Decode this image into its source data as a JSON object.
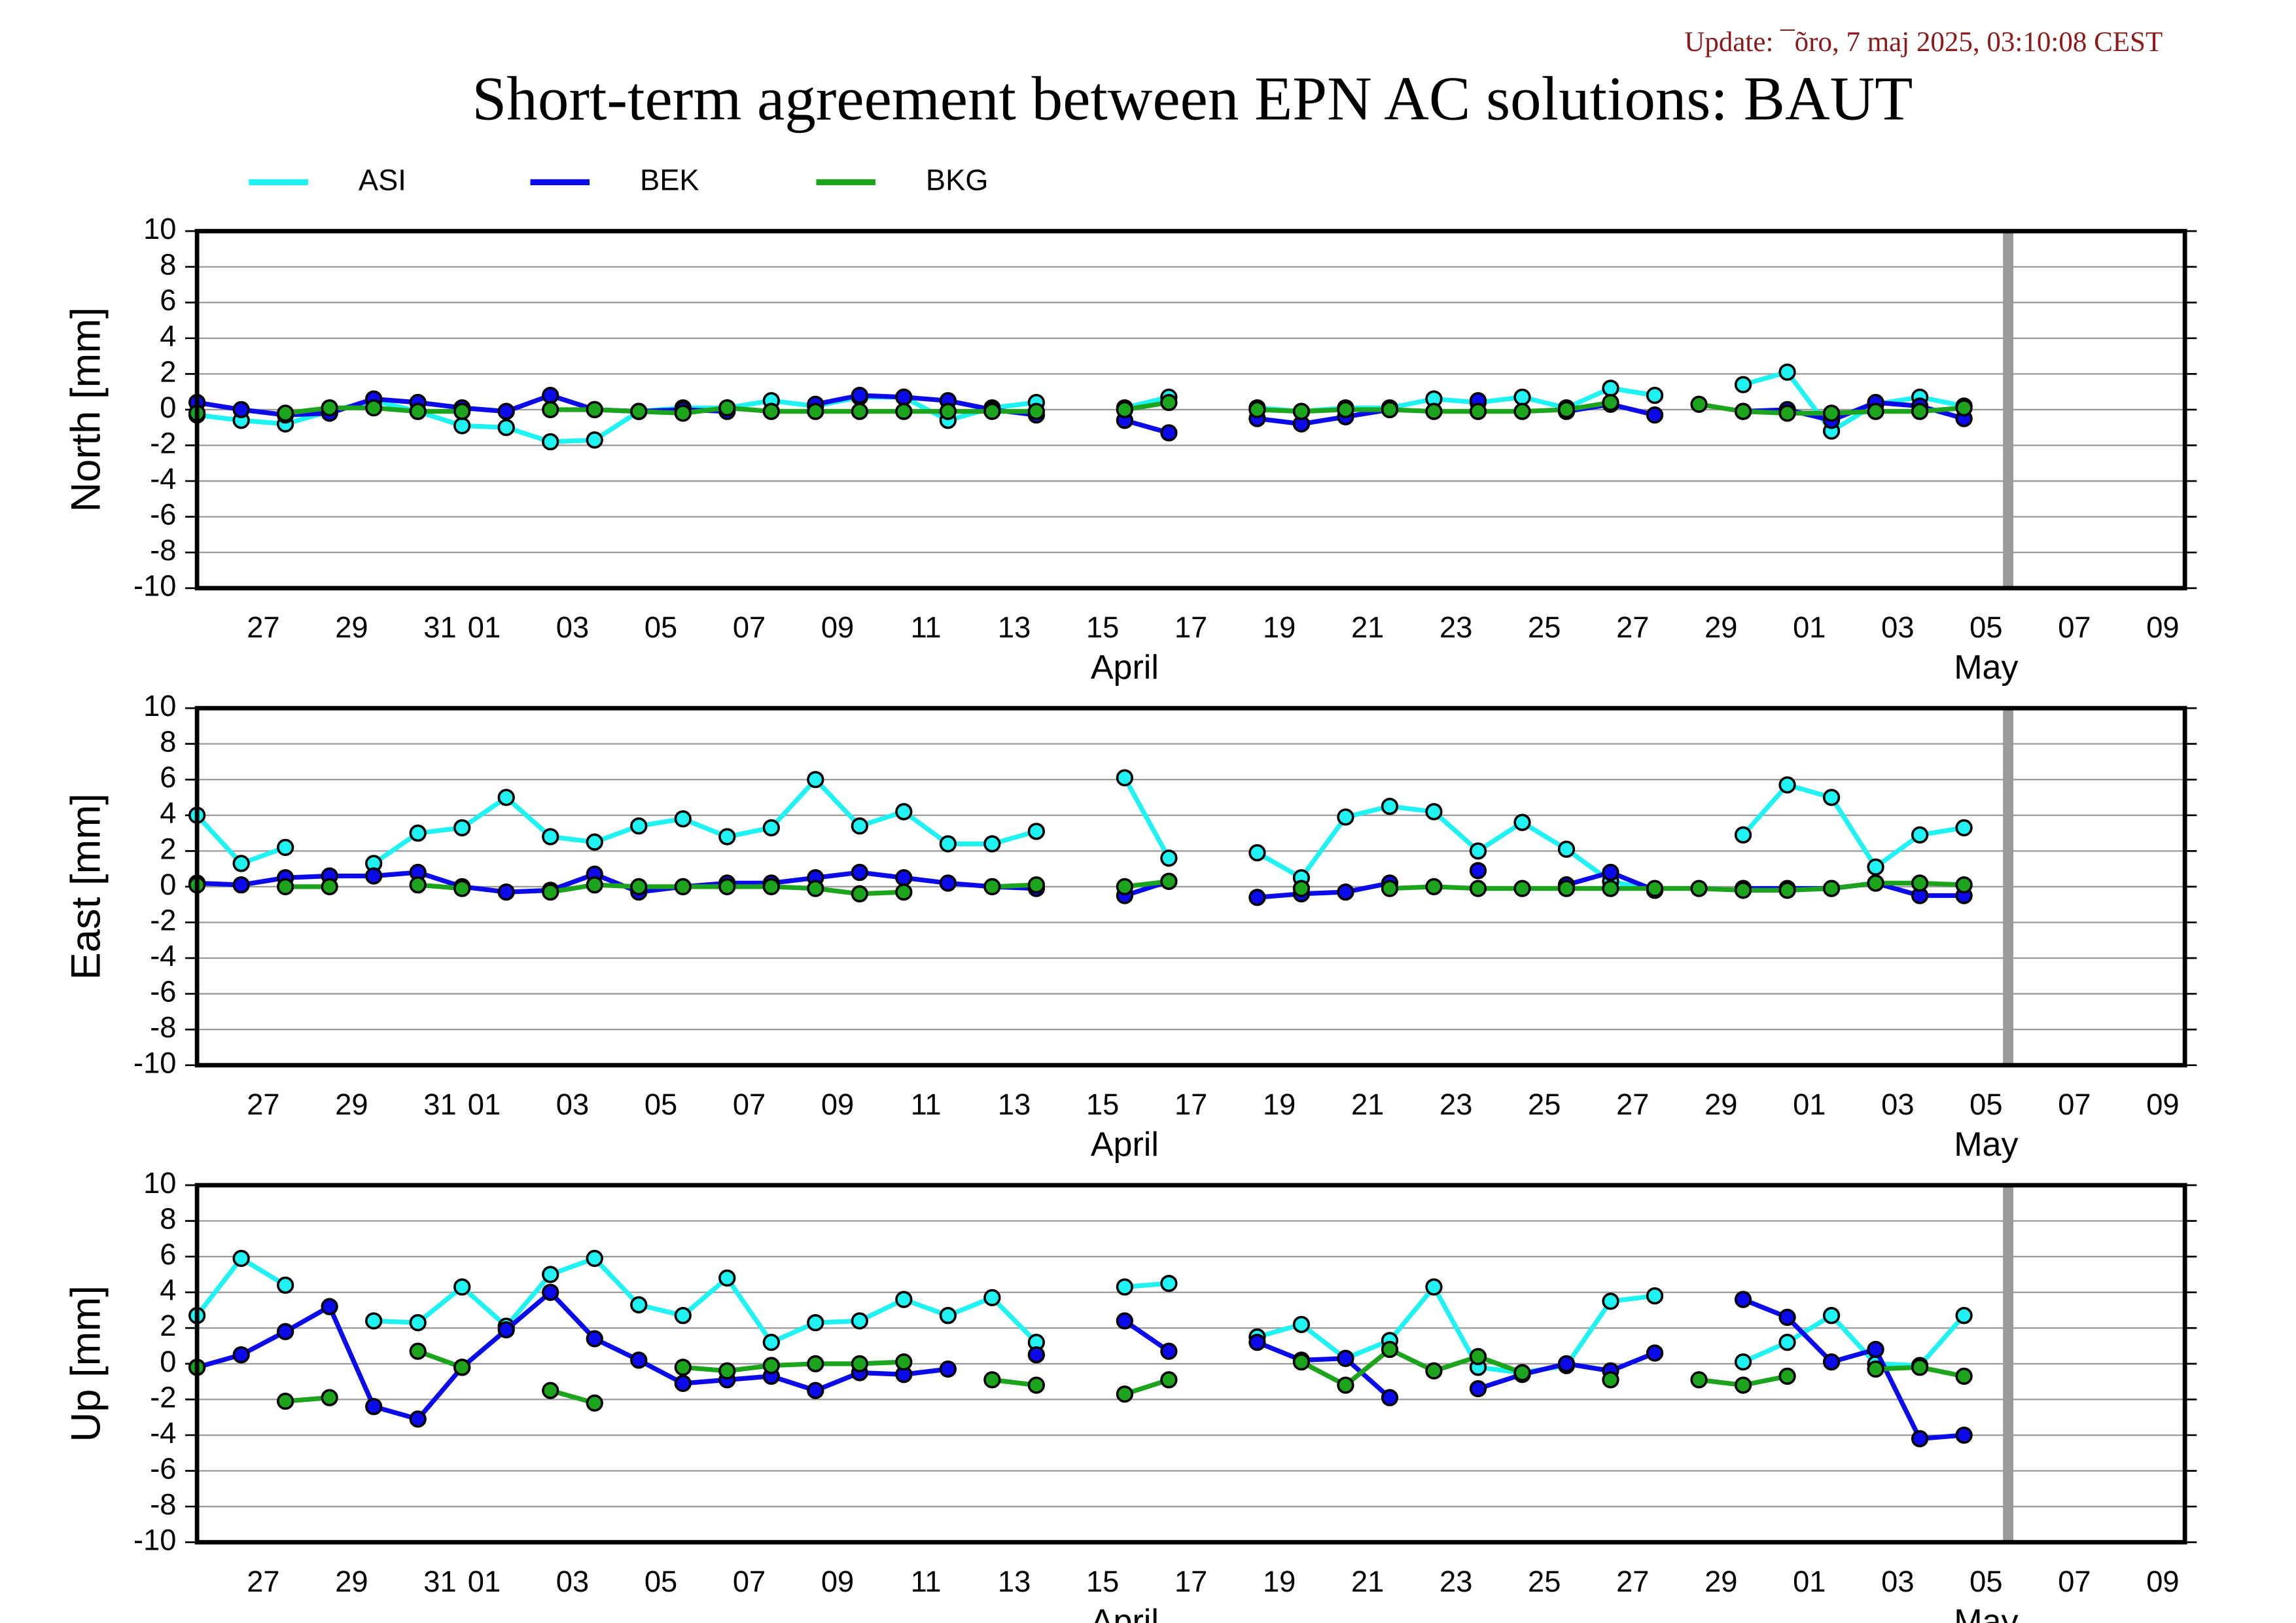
{
  "title": "Short-term agreement between EPN AC solutions: BAUT",
  "update": "Update: ¯õro, 7 maj 2025, 03:10:08 CEST",
  "chart_data": [
    {
      "type": "line",
      "y_label": "North [mm]",
      "x": [
        "03-26",
        "03-27",
        "03-28",
        "03-29",
        "03-30",
        "03-31",
        "04-01",
        "04-02",
        "04-03",
        "04-04",
        "04-05",
        "04-06",
        "04-07",
        "04-08",
        "04-09",
        "04-10",
        "04-11",
        "04-12",
        "04-13",
        "04-14",
        "04-15",
        "04-16",
        "04-17",
        "04-18",
        "04-19",
        "04-20",
        "04-21",
        "04-22",
        "04-23",
        "04-24",
        "04-25",
        "04-26",
        "04-27",
        "04-28",
        "04-29",
        "04-30",
        "05-01",
        "05-02",
        "05-03",
        "05-04",
        "05-05"
      ],
      "series": [
        {
          "name": "ASI",
          "color": "#1ff2f2",
          "values": [
            -0.3,
            -0.6,
            -0.8,
            -0.1,
            0.5,
            -0.1,
            -0.9,
            -1.0,
            -1.8,
            -1.7,
            -0.1,
            0.1,
            0.1,
            0.5,
            0.2,
            0.7,
            0.7,
            -0.6,
            0.1,
            0.4,
            null,
            0.1,
            0.7,
            null,
            0.1,
            -0.1,
            0.1,
            0.1,
            0.6,
            0.4,
            0.7,
            0.1,
            1.2,
            0.8,
            null,
            1.4,
            2.1,
            -1.2,
            0.3,
            0.7,
            0.2
          ]
        },
        {
          "name": "BEK",
          "color": "#0a0aeb",
          "values": [
            0.4,
            0.0,
            -0.3,
            -0.2,
            0.6,
            0.4,
            0.1,
            -0.1,
            0.8,
            0.0,
            -0.1,
            0.0,
            -0.1,
            null,
            0.3,
            0.8,
            0.7,
            0.5,
            0.0,
            -0.3,
            null,
            -0.6,
            -1.3,
            null,
            -0.5,
            -0.8,
            -0.4,
            0.0,
            null,
            0.5,
            null,
            -0.1,
            0.3,
            -0.3,
            null,
            -0.1,
            0.0,
            -0.6,
            0.4,
            0.2,
            -0.5
          ]
        },
        {
          "name": "BKG",
          "color": "#1ca51c",
          "values": [
            -0.2,
            null,
            -0.2,
            0.1,
            0.1,
            -0.1,
            -0.1,
            null,
            0.0,
            0.0,
            -0.1,
            -0.2,
            0.1,
            -0.1,
            -0.1,
            -0.1,
            -0.1,
            -0.1,
            -0.1,
            -0.1,
            null,
            0.0,
            0.4,
            null,
            0.0,
            -0.1,
            0.0,
            0.0,
            -0.1,
            -0.1,
            -0.1,
            0.0,
            0.4,
            null,
            0.3,
            -0.1,
            -0.2,
            -0.2,
            -0.1,
            -0.1,
            0.1
          ]
        }
      ],
      "xlim": [
        "03-26",
        "05-10"
      ],
      "xticks": [
        {
          "value": "03-27 12:00",
          "label": "27"
        },
        {
          "value": "03-29 12:00",
          "label": "29"
        },
        {
          "value": "03-31 12:00",
          "label": "31"
        },
        {
          "value": "04-01 12:00",
          "label": "01"
        },
        {
          "value": "04-03 12:00",
          "label": "03"
        },
        {
          "value": "04-05 12:00",
          "label": "05"
        },
        {
          "value": "04-07 12:00",
          "label": "07"
        },
        {
          "value": "04-09 12:00",
          "label": "09"
        },
        {
          "value": "04-11 12:00",
          "label": "11"
        },
        {
          "value": "04-13 12:00",
          "label": "13"
        },
        {
          "value": "04-15 12:00",
          "label": "15"
        },
        {
          "value": "04-17 12:00",
          "label": "17"
        },
        {
          "value": "04-19 12:00",
          "label": "19"
        },
        {
          "value": "04-21 12:00",
          "label": "21"
        },
        {
          "value": "04-23 12:00",
          "label": "23"
        },
        {
          "value": "04-25 12:00",
          "label": "25"
        },
        {
          "value": "04-27 12:00",
          "label": "27"
        },
        {
          "value": "04-29 12:00",
          "label": "29"
        },
        {
          "value": "05-01 12:00",
          "label": "01"
        },
        {
          "value": "05-03 12:00",
          "label": "03"
        },
        {
          "value": "05-05 12:00",
          "label": "05"
        },
        {
          "value": "05-07 12:00",
          "label": "07"
        },
        {
          "value": "05-09 12:00",
          "label": "09"
        }
      ],
      "month_labels": [
        {
          "value": "04-16",
          "label": "April"
        },
        {
          "value": "05-05 12:00",
          "label": "May"
        }
      ],
      "marker_x": "05-06",
      "ylim": [
        -10,
        10
      ],
      "yticks": [
        -10,
        -8,
        -6,
        -4,
        -2,
        0,
        2,
        4,
        6,
        8,
        10
      ],
      "grid": true
    },
    {
      "type": "line",
      "y_label": "East [mm]",
      "x": [
        "03-26",
        "03-27",
        "03-28",
        "03-29",
        "03-30",
        "03-31",
        "04-01",
        "04-02",
        "04-03",
        "04-04",
        "04-05",
        "04-06",
        "04-07",
        "04-08",
        "04-09",
        "04-10",
        "04-11",
        "04-12",
        "04-13",
        "04-14",
        "04-15",
        "04-16",
        "04-17",
        "04-18",
        "04-19",
        "04-20",
        "04-21",
        "04-22",
        "04-23",
        "04-24",
        "04-25",
        "04-26",
        "04-27",
        "04-28",
        "04-29",
        "04-30",
        "05-01",
        "05-02",
        "05-03",
        "05-04",
        "05-05"
      ],
      "series": [
        {
          "name": "ASI",
          "color": "#1ff2f2",
          "values": [
            4.0,
            1.3,
            2.2,
            null,
            1.3,
            3.0,
            3.3,
            5.0,
            2.8,
            2.5,
            3.4,
            3.8,
            2.8,
            3.3,
            6.0,
            3.4,
            4.2,
            2.4,
            2.4,
            3.1,
            null,
            6.1,
            1.6,
            null,
            1.9,
            0.5,
            3.9,
            4.5,
            4.2,
            2.0,
            3.6,
            2.1,
            0.3,
            -0.2,
            null,
            2.9,
            5.7,
            5.0,
            1.1,
            2.9,
            3.3
          ]
        },
        {
          "name": "BEK",
          "color": "#0a0aeb",
          "values": [
            0.2,
            0.1,
            0.5,
            0.6,
            0.6,
            0.8,
            0.0,
            -0.3,
            -0.2,
            0.7,
            -0.3,
            0.0,
            0.2,
            0.2,
            0.5,
            0.8,
            0.5,
            0.2,
            0.0,
            -0.1,
            null,
            -0.5,
            0.3,
            null,
            -0.6,
            -0.4,
            -0.3,
            0.2,
            null,
            0.9,
            null,
            0.1,
            0.8,
            -0.2,
            null,
            -0.1,
            -0.1,
            -0.1,
            0.2,
            -0.5,
            -0.5
          ]
        },
        {
          "name": "BKG",
          "color": "#1ca51c",
          "values": [
            0.1,
            null,
            0.0,
            0.0,
            null,
            0.1,
            -0.1,
            null,
            -0.3,
            0.1,
            0.0,
            0.0,
            0.0,
            0.0,
            -0.1,
            -0.4,
            -0.3,
            null,
            0.0,
            0.1,
            null,
            0.0,
            0.3,
            null,
            null,
            -0.1,
            null,
            -0.1,
            0.0,
            -0.1,
            -0.1,
            -0.1,
            -0.1,
            -0.1,
            -0.1,
            -0.2,
            -0.2,
            -0.1,
            0.2,
            0.2,
            0.1
          ]
        }
      ],
      "xlim": [
        "03-26",
        "05-10"
      ],
      "xticks": [
        {
          "value": "03-27 12:00",
          "label": "27"
        },
        {
          "value": "03-29 12:00",
          "label": "29"
        },
        {
          "value": "03-31 12:00",
          "label": "31"
        },
        {
          "value": "04-01 12:00",
          "label": "01"
        },
        {
          "value": "04-03 12:00",
          "label": "03"
        },
        {
          "value": "04-05 12:00",
          "label": "05"
        },
        {
          "value": "04-07 12:00",
          "label": "07"
        },
        {
          "value": "04-09 12:00",
          "label": "09"
        },
        {
          "value": "04-11 12:00",
          "label": "11"
        },
        {
          "value": "04-13 12:00",
          "label": "13"
        },
        {
          "value": "04-15 12:00",
          "label": "15"
        },
        {
          "value": "04-17 12:00",
          "label": "17"
        },
        {
          "value": "04-19 12:00",
          "label": "19"
        },
        {
          "value": "04-21 12:00",
          "label": "21"
        },
        {
          "value": "04-23 12:00",
          "label": "23"
        },
        {
          "value": "04-25 12:00",
          "label": "25"
        },
        {
          "value": "04-27 12:00",
          "label": "27"
        },
        {
          "value": "04-29 12:00",
          "label": "29"
        },
        {
          "value": "05-01 12:00",
          "label": "01"
        },
        {
          "value": "05-03 12:00",
          "label": "03"
        },
        {
          "value": "05-05 12:00",
          "label": "05"
        },
        {
          "value": "05-07 12:00",
          "label": "07"
        },
        {
          "value": "05-09 12:00",
          "label": "09"
        }
      ],
      "month_labels": [
        {
          "value": "04-16",
          "label": "April"
        },
        {
          "value": "05-05 12:00",
          "label": "May"
        }
      ],
      "marker_x": "05-06",
      "ylim": [
        -10,
        10
      ],
      "yticks": [
        -10,
        -8,
        -6,
        -4,
        -2,
        0,
        2,
        4,
        6,
        8,
        10
      ],
      "grid": true
    },
    {
      "type": "line",
      "y_label": "Up [mm]",
      "x": [
        "03-26",
        "03-27",
        "03-28",
        "03-29",
        "03-30",
        "03-31",
        "04-01",
        "04-02",
        "04-03",
        "04-04",
        "04-05",
        "04-06",
        "04-07",
        "04-08",
        "04-09",
        "04-10",
        "04-11",
        "04-12",
        "04-13",
        "04-14",
        "04-15",
        "04-16",
        "04-17",
        "04-18",
        "04-19",
        "04-20",
        "04-21",
        "04-22",
        "04-23",
        "04-24",
        "04-25",
        "04-26",
        "04-27",
        "04-28",
        "04-29",
        "04-30",
        "05-01",
        "05-02",
        "05-03",
        "05-04",
        "05-05"
      ],
      "series": [
        {
          "name": "ASI",
          "color": "#1ff2f2",
          "values": [
            2.7,
            5.9,
            4.4,
            null,
            2.4,
            2.3,
            4.3,
            2.1,
            5.0,
            5.9,
            3.3,
            2.7,
            4.8,
            1.2,
            2.3,
            2.4,
            3.6,
            2.7,
            3.7,
            1.2,
            null,
            4.3,
            4.5,
            null,
            1.5,
            2.2,
            0.3,
            1.3,
            4.3,
            -0.2,
            -0.5,
            -0.1,
            3.5,
            3.8,
            null,
            0.1,
            1.2,
            2.7,
            0.0,
            -0.1,
            2.7
          ]
        },
        {
          "name": "BEK",
          "color": "#0a0aeb",
          "values": [
            -0.2,
            0.5,
            1.8,
            3.2,
            -2.4,
            -3.1,
            -0.2,
            1.9,
            4.0,
            1.4,
            0.2,
            -1.1,
            -0.9,
            -0.7,
            -1.5,
            -0.5,
            -0.6,
            -0.3,
            null,
            0.5,
            null,
            2.4,
            0.7,
            null,
            1.2,
            0.2,
            0.3,
            -1.9,
            null,
            -1.4,
            -0.6,
            0.0,
            -0.4,
            0.6,
            null,
            3.6,
            2.6,
            0.1,
            0.8,
            -4.2,
            -4.0
          ]
        },
        {
          "name": "BKG",
          "color": "#1ca51c",
          "values": [
            -0.2,
            null,
            -2.1,
            -1.9,
            null,
            0.7,
            -0.2,
            null,
            -1.5,
            -2.2,
            null,
            -0.2,
            -0.4,
            -0.1,
            0.0,
            0.0,
            0.1,
            null,
            -0.9,
            -1.2,
            null,
            -1.7,
            -0.9,
            null,
            null,
            0.1,
            -1.2,
            0.8,
            -0.4,
            0.4,
            -0.5,
            null,
            -0.9,
            null,
            -0.9,
            -1.2,
            -0.7,
            null,
            -0.3,
            -0.2,
            -0.7
          ]
        }
      ],
      "xlim": [
        "03-26",
        "05-10"
      ],
      "xticks": [
        {
          "value": "03-27 12:00",
          "label": "27"
        },
        {
          "value": "03-29 12:00",
          "label": "29"
        },
        {
          "value": "03-31 12:00",
          "label": "31"
        },
        {
          "value": "04-01 12:00",
          "label": "01"
        },
        {
          "value": "04-03 12:00",
          "label": "03"
        },
        {
          "value": "04-05 12:00",
          "label": "05"
        },
        {
          "value": "04-07 12:00",
          "label": "07"
        },
        {
          "value": "04-09 12:00",
          "label": "09"
        },
        {
          "value": "04-11 12:00",
          "label": "11"
        },
        {
          "value": "04-13 12:00",
          "label": "13"
        },
        {
          "value": "04-15 12:00",
          "label": "15"
        },
        {
          "value": "04-17 12:00",
          "label": "17"
        },
        {
          "value": "04-19 12:00",
          "label": "19"
        },
        {
          "value": "04-21 12:00",
          "label": "21"
        },
        {
          "value": "04-23 12:00",
          "label": "23"
        },
        {
          "value": "04-25 12:00",
          "label": "25"
        },
        {
          "value": "04-27 12:00",
          "label": "27"
        },
        {
          "value": "04-29 12:00",
          "label": "29"
        },
        {
          "value": "05-01 12:00",
          "label": "01"
        },
        {
          "value": "05-03 12:00",
          "label": "03"
        },
        {
          "value": "05-05 12:00",
          "label": "05"
        },
        {
          "value": "05-07 12:00",
          "label": "07"
        },
        {
          "value": "05-09 12:00",
          "label": "09"
        }
      ],
      "month_labels": [
        {
          "value": "04-16",
          "label": "April"
        },
        {
          "value": "05-05 12:00",
          "label": "May"
        }
      ],
      "marker_x": "05-06",
      "ylim": [
        -10,
        10
      ],
      "yticks": [
        -10,
        -8,
        -6,
        -4,
        -2,
        0,
        2,
        4,
        6,
        8,
        10
      ],
      "grid": true
    }
  ]
}
